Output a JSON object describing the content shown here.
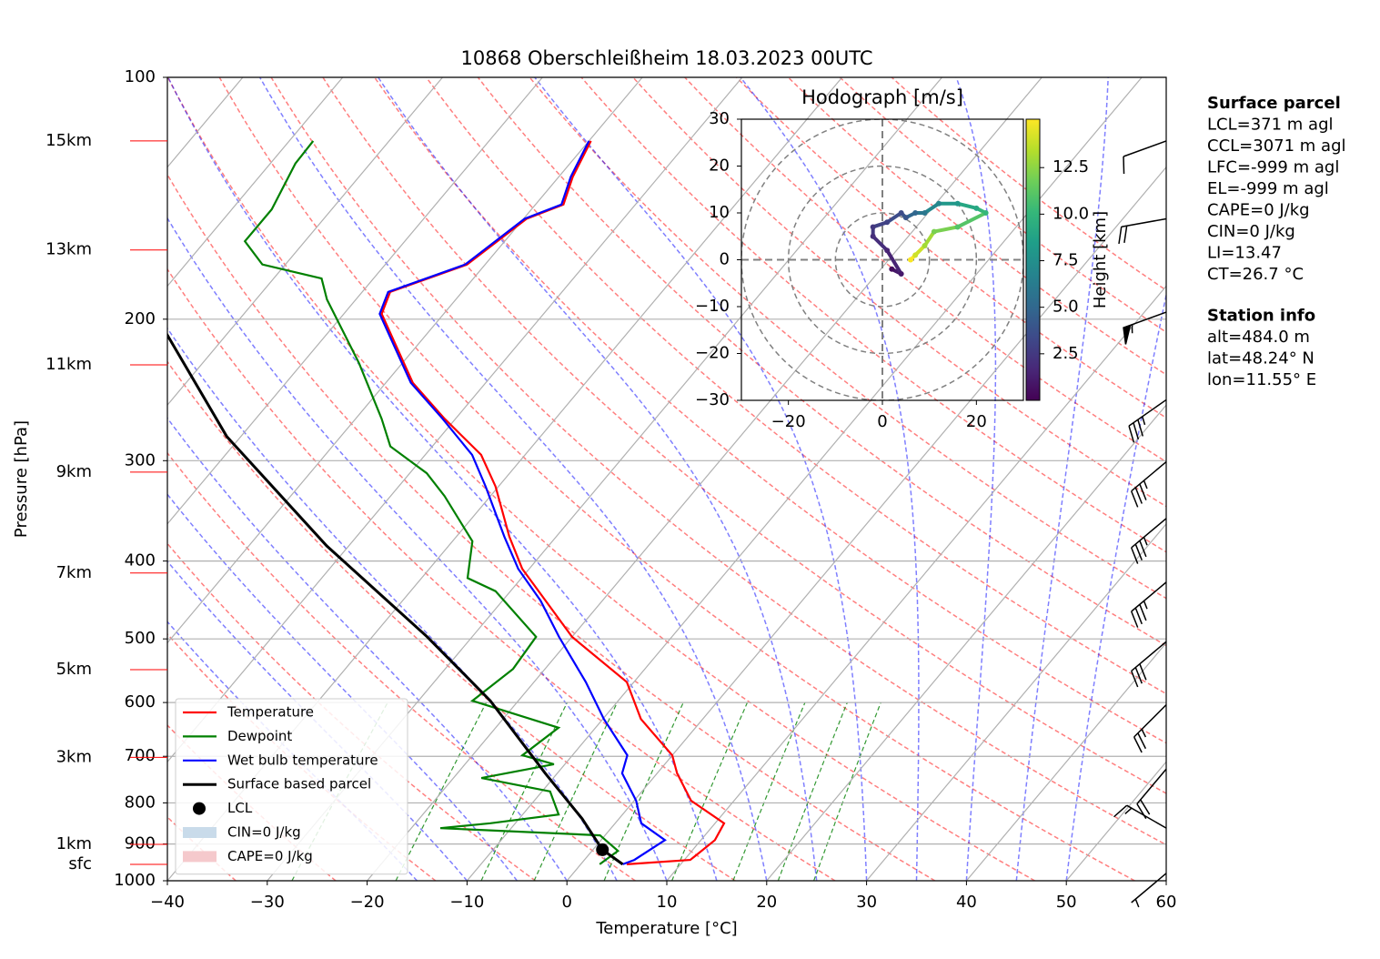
{
  "chart_data": [
    {
      "type": "skewt",
      "title": "10868 Oberschleißheim 18.03.2023 00UTC",
      "xlabel": "Temperature [°C]",
      "ylabel": "Pressure [hPa]",
      "xlim": [
        -40,
        60
      ],
      "ylim": [
        1000,
        100
      ],
      "log_y": true,
      "grid": true,
      "legend": "lower left",
      "xticks": [
        {
          "value": -40,
          "label": "−40"
        },
        {
          "value": -30,
          "label": "−30"
        },
        {
          "value": -20,
          "label": "−20"
        },
        {
          "value": -10,
          "label": "−10"
        },
        0,
        10,
        20,
        30,
        40,
        50,
        60
      ],
      "yticks": [
        100,
        200,
        300,
        400,
        500,
        600,
        700,
        800,
        900,
        1000
      ],
      "series": [
        {
          "name": "Temperature",
          "color": "#ff0000",
          "pressure": [
            954,
            942,
            890,
            848,
            795,
            735,
            698,
            629,
            566,
            497,
            448,
            409,
            373,
            323,
            295,
            266,
            240,
            197,
            185,
            171,
            150,
            144,
            133,
            120
          ],
          "values": [
            4.6,
            10.6,
            11.4,
            10.9,
            5.7,
            2.0,
            0.0,
            -6.2,
            -10.7,
            -20.0,
            -25.7,
            -30.7,
            -34.7,
            -40.3,
            -44.4,
            -51.1,
            -57.3,
            -66.2,
            -67.2,
            -61.8,
            -59.7,
            -57.2,
            -58.6,
            -59.8
          ]
        },
        {
          "name": "Dewpoint",
          "color": "#008000",
          "pressure": [
            954,
            918,
            878,
            860,
            848,
            827,
            774,
            745,
            716,
            698,
            645,
            597,
            545,
            497,
            436,
            420,
            378,
            332,
            311,
            288,
            266,
            227,
            189,
            178,
            171,
            160,
            146,
            128,
            120
          ],
          "values": [
            1.9,
            2.6,
            -0.5,
            -17.1,
            -12.5,
            -6.4,
            -9.2,
            -17.2,
            -11.1,
            -15.0,
            -13.7,
            -24.6,
            -23.2,
            -23.6,
            -31.5,
            -35.4,
            -38.0,
            -44.6,
            -48.3,
            -54.2,
            -57.4,
            -64.3,
            -72.9,
            -75.2,
            -82.3,
            -86.0,
            -86.0,
            -87.5,
            -87.6
          ]
        },
        {
          "name": "Wet bulb temperature",
          "color": "#0000ff",
          "pressure": [
            954,
            942,
            890,
            848,
            795,
            735,
            698,
            629,
            566,
            497,
            448,
            409,
            373,
            323,
            295,
            266,
            240,
            197,
            185,
            171,
            150,
            144,
            133,
            120
          ],
          "values": [
            4.2,
            5.0,
            6.4,
            2.6,
            0.2,
            -3.5,
            -4.5,
            -9.9,
            -14.8,
            -21.3,
            -26.2,
            -31.1,
            -35.2,
            -41.3,
            -45.3,
            -51.3,
            -57.5,
            -66.4,
            -67.4,
            -62.0,
            -59.9,
            -57.4,
            -58.8,
            -60.0
          ]
        },
        {
          "name": "Surface based parcel",
          "color": "#000000",
          "pressure": [
            954,
            915,
            837,
            735,
            597,
            497,
            383,
            280,
            208
          ],
          "values": [
            4.2,
            0.95,
            -3.7,
            -11.2,
            -22.8,
            -34.5,
            -52.2,
            -71.4,
            -86.2
          ]
        }
      ],
      "lcl": {
        "name": "LCL",
        "color": "#000000",
        "pressure": 915,
        "value": 0.95
      },
      "shading": [
        {
          "name": "CIN=0 J/kg",
          "color": "#c9dbea"
        },
        {
          "name": "CAPE=0 J/kg",
          "color": "#f5c9cc"
        }
      ],
      "height_labels": {
        "color": "#ff0000",
        "labels": [
          "15km",
          "13km",
          "11km",
          "9km",
          "7km",
          "5km",
          "3km",
          "1km",
          "sfc"
        ],
        "pressure": [
          120,
          164,
          228,
          310,
          414,
          546,
          702,
          901,
          954
        ]
      },
      "wind_barbs": {
        "pressure": [
          120,
          150,
          196,
          252,
          301,
          354,
          425,
          504,
          604,
          726,
          860,
          979
        ],
        "speed": [
          10,
          20,
          55,
          35,
          35,
          35,
          35,
          30,
          25,
          20,
          15,
          5
        ],
        "direction": [
          250,
          260,
          250,
          235,
          230,
          230,
          230,
          230,
          225,
          220,
          300,
          230
        ]
      }
    },
    {
      "type": "hodograph",
      "title": "Hodograph [m/s]",
      "xlim": [
        -30,
        30
      ],
      "ylim": [
        -30,
        30
      ],
      "xticks": [
        {
          "value": -20,
          "label": "−20"
        },
        0,
        20
      ],
      "yticks": [
        {
          "value": -30,
          "label": "−30"
        },
        {
          "value": -20,
          "label": "−20"
        },
        {
          "value": -10,
          "label": "−10"
        },
        0,
        10,
        20,
        30
      ],
      "u": [
        2,
        4,
        1,
        -2,
        -2,
        1,
        4,
        5,
        7,
        9,
        12,
        16,
        20,
        22,
        16,
        11,
        9,
        7,
        6
      ],
      "v": [
        -2,
        -3,
        2,
        5,
        7,
        8,
        10,
        9,
        10,
        10,
        12,
        12,
        11,
        10,
        7,
        6,
        3,
        1,
        0
      ],
      "height": [
        0.5,
        1,
        1.5,
        2,
        2.5,
        3,
        3.5,
        4,
        5,
        6,
        7,
        8,
        9,
        10,
        11,
        12,
        13,
        14,
        15
      ],
      "colorbar": {
        "label": "Height [km]",
        "lim": [
          0,
          15.1
        ],
        "ticks": [
          2.5,
          {
            "value": 5,
            "label": "5.0"
          },
          7.5,
          {
            "value": 10,
            "label": "10.0"
          },
          12.5
        ]
      }
    }
  ],
  "info_panel": {
    "surface_parcel": {
      "title": "Surface parcel",
      "lines": [
        "LCL=371 m agl",
        "CCL=3071 m agl",
        "LFC=-999 m agl",
        "EL=-999 m agl",
        "CAPE=0 J/kg",
        "CIN=0 J/kg",
        "LI=13.47",
        "CT=26.7 °C"
      ]
    },
    "station_info": {
      "title": "Station info",
      "lines": [
        "alt=484.0 m",
        "lat=48.24° N",
        "lon=11.55° E"
      ]
    }
  }
}
